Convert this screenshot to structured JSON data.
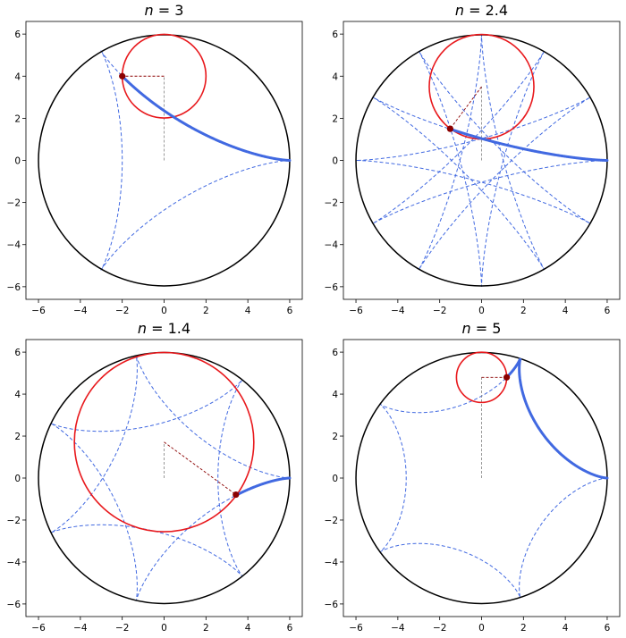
{
  "chart_data": [
    {
      "type": "line",
      "title_var": "n",
      "title_value": "3",
      "title": "n = 3",
      "n": 3,
      "R": 6,
      "theta": 1.5707963,
      "xlim": [
        -6.6,
        6.6
      ],
      "ylim": [
        -6.6,
        6.6
      ],
      "xticks": [
        -6,
        -4,
        -2,
        0,
        2,
        4,
        6
      ],
      "yticks": [
        -6,
        -4,
        -2,
        0,
        2,
        4,
        6
      ],
      "grid": false,
      "point": [
        -2.0,
        4.0
      ],
      "rolling_circle_center": [
        0,
        4.0
      ],
      "rolling_circle_radius": 2.0
    },
    {
      "type": "line",
      "title_var": "n",
      "title_value": "2.4",
      "title": "n = 2.4",
      "n": 2.4,
      "R": 6,
      "theta": 1.5707963,
      "xlim": [
        -6.6,
        6.6
      ],
      "ylim": [
        -6.6,
        6.6
      ],
      "xticks": [
        -6,
        -4,
        -2,
        0,
        2,
        4,
        6
      ],
      "yticks": [
        -6,
        -4,
        -2,
        0,
        2,
        4,
        6
      ],
      "grid": false,
      "point": [
        -1.5,
        1.5
      ],
      "rolling_circle_center": [
        0,
        3.5
      ],
      "rolling_circle_radius": 2.5
    },
    {
      "type": "line",
      "title_var": "n",
      "title_value": "1.4",
      "title": "n = 1.4",
      "n": 1.4,
      "R": 6,
      "theta": 1.5707963,
      "xlim": [
        -6.6,
        6.6
      ],
      "ylim": [
        -6.6,
        6.6
      ],
      "xticks": [
        -6,
        -4,
        -2,
        0,
        2,
        4,
        6
      ],
      "yticks": [
        -6,
        -4,
        -2,
        0,
        2,
        4,
        6
      ],
      "grid": false,
      "point": [
        3.43,
        -0.79
      ],
      "rolling_circle_center": [
        0,
        1.714
      ],
      "rolling_circle_radius": 4.286
    },
    {
      "type": "line",
      "title_var": "n",
      "title_value": "5",
      "title": "n = 5",
      "n": 5,
      "R": 6,
      "theta": 1.5707963,
      "xlim": [
        -6.6,
        6.6
      ],
      "ylim": [
        -6.6,
        6.6
      ],
      "xticks": [
        -6,
        -4,
        -2,
        0,
        2,
        4,
        6
      ],
      "yticks": [
        -6,
        -4,
        -2,
        0,
        2,
        4,
        6
      ],
      "grid": false,
      "point": [
        1.2,
        4.8
      ],
      "rolling_circle_center": [
        0,
        4.8
      ],
      "rolling_circle_radius": 1.2
    }
  ],
  "colors": {
    "fixed_circle": "#000000",
    "rolling_circle": "#e8181c",
    "trace": "#4169e1",
    "full_curve": "#4169e1",
    "guide": "#8b0000",
    "point": "#8b0000",
    "center_line": "#808080"
  }
}
